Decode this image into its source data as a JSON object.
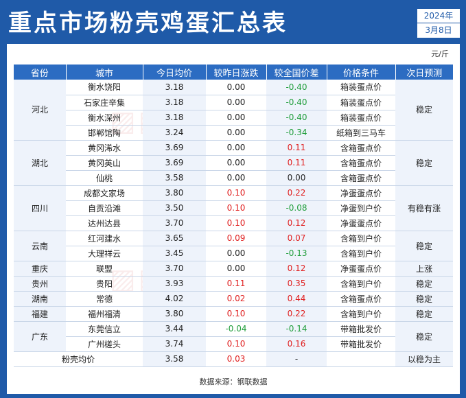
{
  "title": "重点市场粉壳鸡蛋汇总表",
  "date": {
    "year": "2024年",
    "day": "3月8日"
  },
  "unit": "元/斤",
  "headers": [
    "省份",
    "城市",
    "今日均价",
    "较昨日涨跌",
    "较全国价差",
    "价格条件",
    "次日预测"
  ],
  "rows": [
    {
      "city": "衡水饶阳",
      "price": "3.18",
      "change": "0.00",
      "diff": "-0.40",
      "cond": "箱装蛋点价"
    },
    {
      "city": "石家庄辛集",
      "price": "3.18",
      "change": "0.00",
      "diff": "-0.40",
      "cond": "箱装蛋点价"
    },
    {
      "city": "衡水深州",
      "price": "3.18",
      "change": "0.00",
      "diff": "-0.40",
      "cond": "箱装蛋点价"
    },
    {
      "city": "邯郸馆陶",
      "price": "3.24",
      "change": "0.00",
      "diff": "-0.34",
      "cond": "纸箱到三马车"
    },
    {
      "city": "黄冈浠水",
      "price": "3.69",
      "change": "0.00",
      "diff": "0.11",
      "cond": "含箱蛋点价"
    },
    {
      "city": "黄冈英山",
      "price": "3.69",
      "change": "0.00",
      "diff": "0.11",
      "cond": "含箱蛋点价"
    },
    {
      "city": "仙桃",
      "price": "3.58",
      "change": "0.00",
      "diff": "0.00",
      "cond": "含箱蛋点价"
    },
    {
      "city": "成都文家场",
      "price": "3.80",
      "change": "0.10",
      "diff": "0.22",
      "cond": "净蛋蛋点价"
    },
    {
      "city": "自贡沿滩",
      "price": "3.50",
      "change": "0.10",
      "diff": "-0.08",
      "cond": "净蛋到户价"
    },
    {
      "city": "达州达县",
      "price": "3.70",
      "change": "0.10",
      "diff": "0.12",
      "cond": "净蛋蛋点价"
    },
    {
      "city": "红河建水",
      "price": "3.65",
      "change": "0.09",
      "diff": "0.07",
      "cond": "含箱到户价"
    },
    {
      "city": "大理祥云",
      "price": "3.45",
      "change": "0.00",
      "diff": "-0.13",
      "cond": "含箱到户价"
    },
    {
      "city": "联盟",
      "price": "3.70",
      "change": "0.00",
      "diff": "0.12",
      "cond": "净蛋蛋点价"
    },
    {
      "city": "贵阳",
      "price": "3.93",
      "change": "0.11",
      "diff": "0.35",
      "cond": "含箱到户价"
    },
    {
      "city": "常德",
      "price": "4.02",
      "change": "0.02",
      "diff": "0.44",
      "cond": "含箱蛋点价"
    },
    {
      "city": "福州福清",
      "price": "3.80",
      "change": "0.10",
      "diff": "0.22",
      "cond": "含箱到户价"
    },
    {
      "city": "东莞信立",
      "price": "3.44",
      "change": "-0.04",
      "diff": "-0.14",
      "cond": "带箱批发价"
    },
    {
      "city": "广州槎头",
      "price": "3.74",
      "change": "0.10",
      "diff": "0.16",
      "cond": "带箱批发价"
    }
  ],
  "groups": [
    {
      "province": "河北",
      "start": 0,
      "span": 4,
      "forecast": "稳定"
    },
    {
      "province": "湖北",
      "start": 4,
      "span": 3,
      "forecast": "稳定"
    },
    {
      "province": "四川",
      "start": 7,
      "span": 3,
      "forecast": "有稳有涨"
    },
    {
      "province": "云南",
      "start": 10,
      "span": 2,
      "forecast": "稳定"
    },
    {
      "province": "重庆",
      "start": 12,
      "span": 1,
      "forecast": "上涨"
    },
    {
      "province": "贵州",
      "start": 13,
      "span": 1,
      "forecast": "稳定"
    },
    {
      "province": "湖南",
      "start": 14,
      "span": 1,
      "forecast": "稳定"
    },
    {
      "province": "福建",
      "start": 15,
      "span": 1,
      "forecast": "稳定"
    },
    {
      "province": "广东",
      "start": 16,
      "span": 2,
      "forecast": "稳定"
    }
  ],
  "summary": {
    "label": "粉壳均价",
    "price": "3.58",
    "change": "0.03",
    "diff": "-",
    "forecast": "以稳为主"
  },
  "source": "数据来源：钢联数据",
  "colors": {
    "header_bg": "#1f5aa8",
    "table_header_bg": "#2c6cc2",
    "up": "#e02020",
    "down": "#1f9d3a"
  }
}
